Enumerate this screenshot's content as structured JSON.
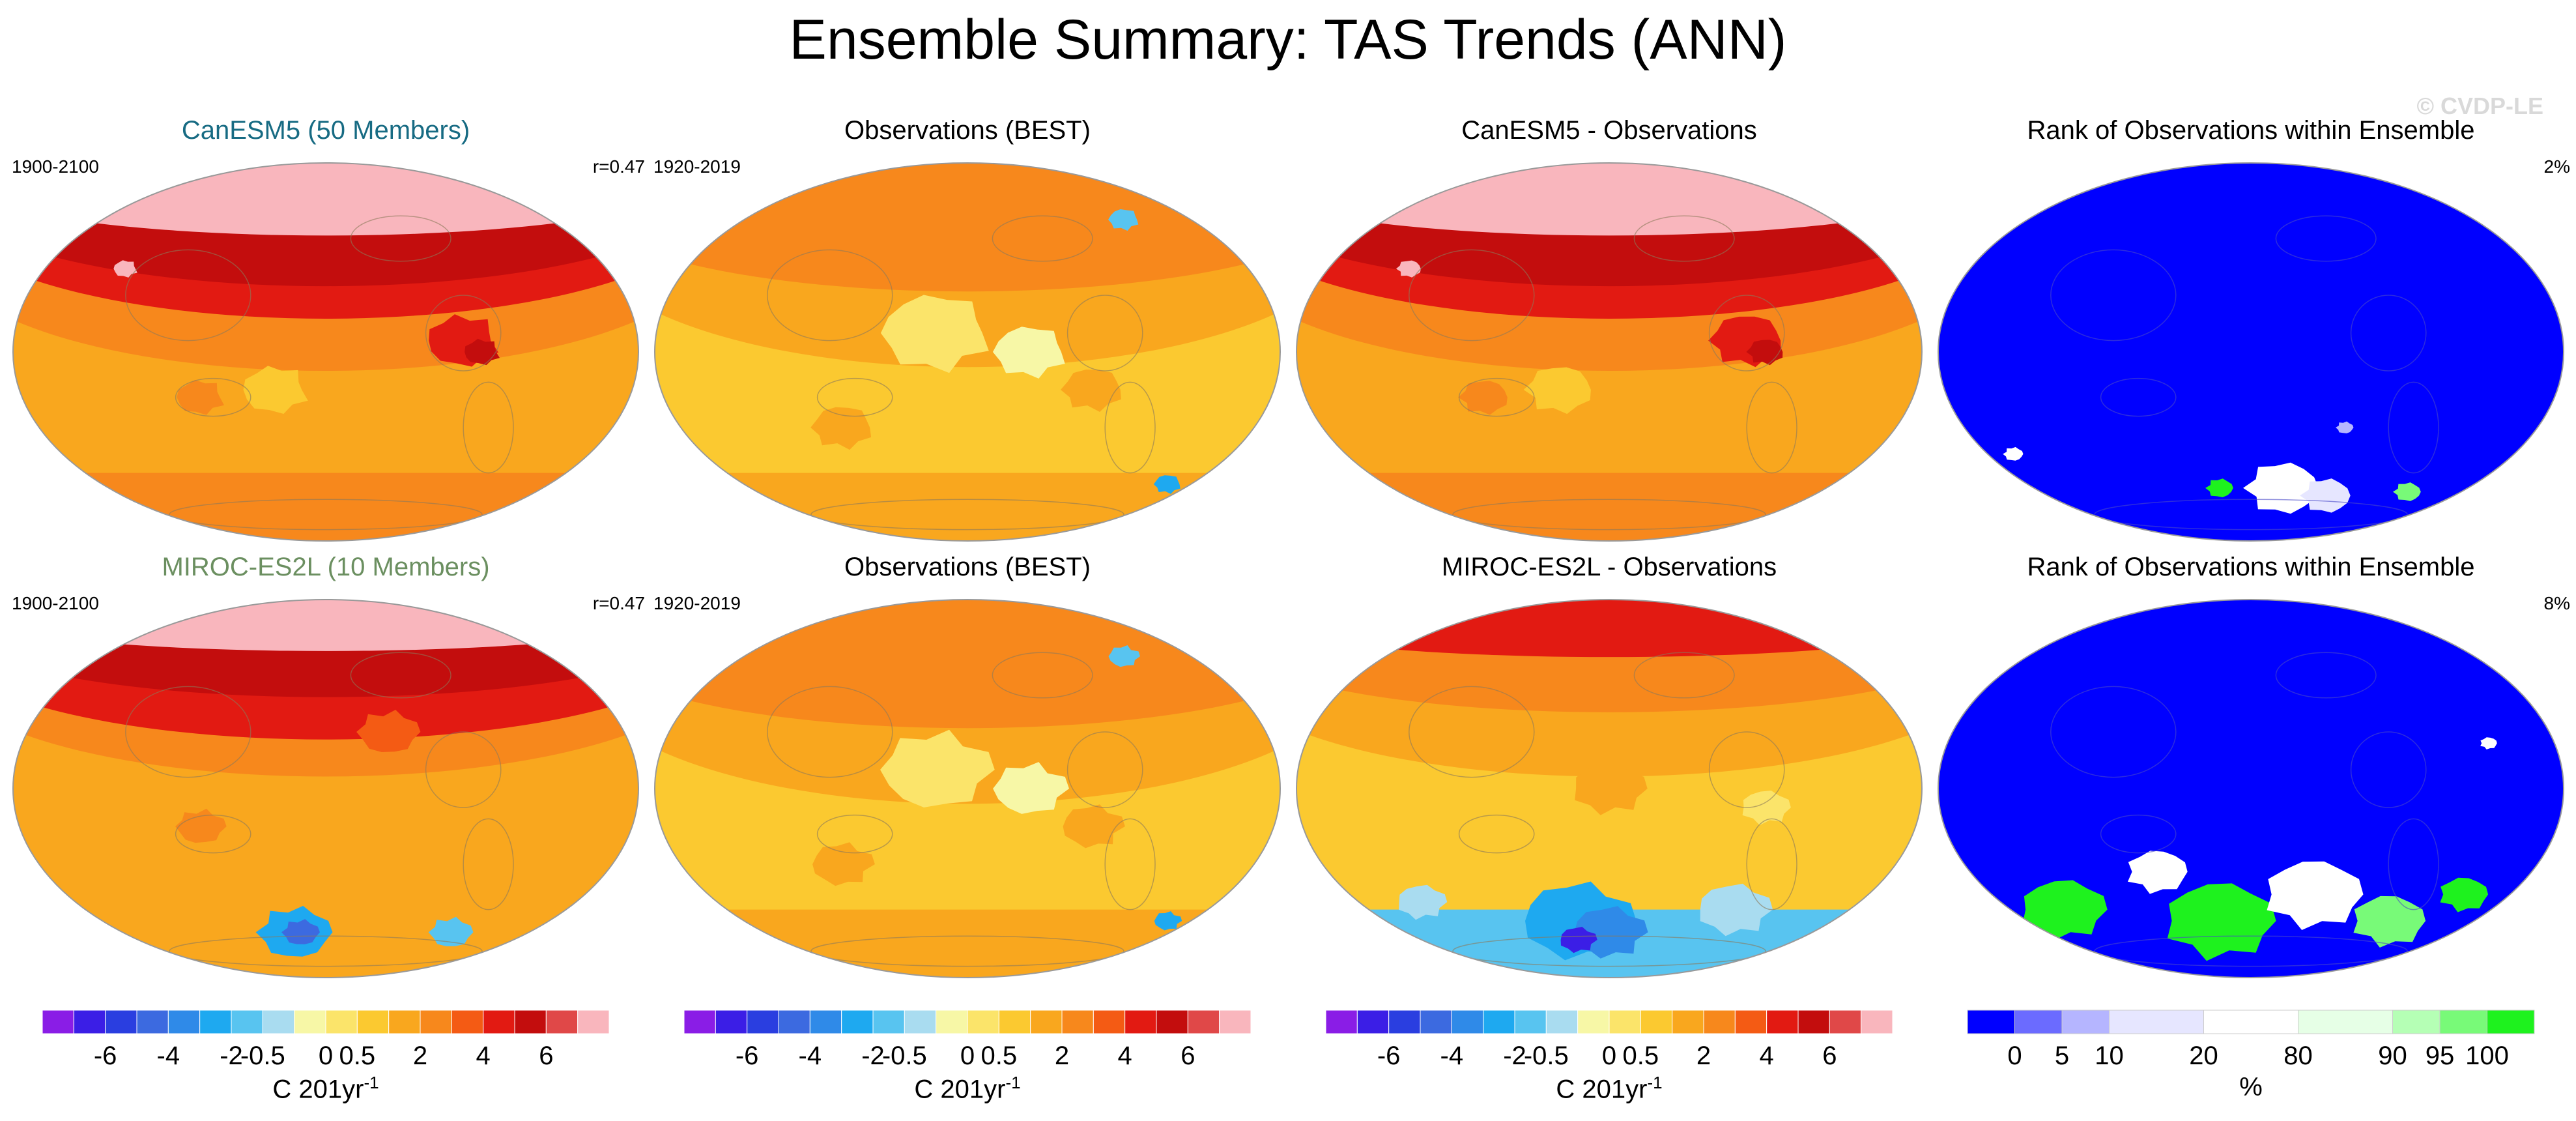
{
  "title": "Ensemble Summary: TAS Trends (ANN)",
  "copyright": "© CVDP-LE",
  "colors": {
    "model1": "#176b83",
    "model2": "#6b8f60",
    "trend_scale": [
      "#8a1de6",
      "#3b1ee6",
      "#2a3ee0",
      "#3c6ae0",
      "#2f8ae8",
      "#1ea9f0",
      "#58c4f0",
      "#a9dcf0",
      "#f7f7a6",
      "#fbe46a",
      "#fbc930",
      "#f9a71e",
      "#f7881c",
      "#f45b14",
      "#e21a12",
      "#c30d0d",
      "#e04848",
      "#f9b6bd"
    ],
    "rank_scale": [
      "#0000ff",
      "#6b6bff",
      "#b5b5ff",
      "#e6e6ff",
      "#ffffff",
      "#e6ffe6",
      "#b5ffb5",
      "#78fa78",
      "#1ef21e"
    ]
  },
  "panels": [
    {
      "title": "CanESM5 (50 Members)",
      "left": "1900-2100",
      "right": "r=0.47",
      "type": "trend_model",
      "theme": "warm_strong"
    },
    {
      "title": "Observations (BEST)",
      "left": "1920-2019",
      "right": "",
      "type": "trend_obs",
      "theme": "obs"
    },
    {
      "title": "CanESM5 - Observations",
      "left": "",
      "right": "",
      "type": "trend_diff",
      "theme": "warm_strong"
    },
    {
      "title": "Rank of Observations within Ensemble",
      "left": "",
      "right": "2%",
      "type": "rank",
      "theme": "rank1"
    },
    {
      "title": "MIROC-ES2L (10 Members)",
      "left": "1900-2100",
      "right": "r=0.47",
      "type": "trend_model",
      "theme": "warm_mid"
    },
    {
      "title": "Observations (BEST)",
      "left": "1920-2019",
      "right": "",
      "type": "trend_obs",
      "theme": "obs"
    },
    {
      "title": "MIROC-ES2L - Observations",
      "left": "",
      "right": "",
      "type": "trend_diff",
      "theme": "diff_cool"
    },
    {
      "title": "Rank of Observations within Ensemble",
      "left": "",
      "right": "8%",
      "type": "rank",
      "theme": "rank2"
    }
  ],
  "colorbars": [
    {
      "ticks": [
        "-6",
        "-4",
        "-2",
        "-0.5",
        "0",
        "0.5",
        "2",
        "4",
        "6"
      ],
      "units": "C 201yr",
      "units_sup": "-1"
    },
    {
      "ticks": [
        "-6",
        "-4",
        "-2",
        "-0.5",
        "0",
        "0.5",
        "2",
        "4",
        "6"
      ],
      "units": "C 201yr",
      "units_sup": "-1"
    },
    {
      "ticks": [
        "-6",
        "-4",
        "-2",
        "-0.5",
        "0",
        "0.5",
        "2",
        "4",
        "6"
      ],
      "units": "C 201yr",
      "units_sup": "-1"
    },
    {
      "ticks": [
        "0",
        "5",
        "10",
        "20",
        "80",
        "90",
        "95",
        "100"
      ],
      "units": "%",
      "units_sup": ""
    }
  ],
  "chart_data": {
    "type": "heatmap",
    "title": "Ensemble Summary: TAS Trends (ANN)",
    "variable": "TAS trend, annual",
    "trend_levels": [
      -6,
      -5,
      -4,
      -3,
      -2,
      -1,
      -0.5,
      -0.25,
      0,
      0.25,
      0.5,
      1,
      2,
      3,
      4,
      5,
      6
    ],
    "rank_levels_percent": [
      0,
      5,
      10,
      20,
      80,
      90,
      95,
      100
    ],
    "summary": [
      {
        "panel": "CanESM5 (50 Members)",
        "period": "1900-2100",
        "pattern_correlation": 0.47
      },
      {
        "panel": "MIROC-ES2L (10 Members)",
        "period": "1900-2100",
        "pattern_correlation": 0.47
      },
      {
        "panel": "Observations (BEST)",
        "period": "1920-2019"
      },
      {
        "panel": "Rank of Observations within Ensemble (CanESM5)",
        "percent_area_outside": "2%"
      },
      {
        "panel": "Rank of Observations within Ensemble (MIROC-ES2L)",
        "percent_area_outside": "8%"
      }
    ]
  }
}
